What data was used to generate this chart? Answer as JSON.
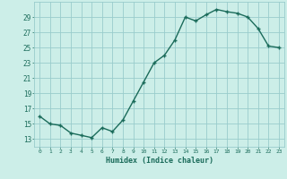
{
  "title": "",
  "xlabel": "Humidex (Indice chaleur)",
  "ylabel": "",
  "x": [
    0,
    1,
    2,
    3,
    4,
    5,
    6,
    7,
    8,
    9,
    10,
    11,
    12,
    13,
    14,
    15,
    16,
    17,
    18,
    19,
    20,
    21,
    22,
    23
  ],
  "y": [
    16.0,
    15.0,
    14.8,
    13.8,
    13.5,
    13.2,
    14.5,
    14.0,
    15.5,
    18.0,
    20.5,
    23.0,
    24.0,
    26.0,
    29.0,
    28.5,
    29.3,
    30.0,
    29.7,
    29.5,
    29.0,
    27.5,
    25.2,
    25.0
  ],
  "line_color": "#1a6b5a",
  "marker": "+",
  "marker_color": "#1a6b5a",
  "bg_color": "#cceee8",
  "grid_color": "#99cccc",
  "tick_label_color": "#1a6b5a",
  "xlabel_color": "#1a6b5a",
  "ylim": [
    12,
    31
  ],
  "yticks": [
    13,
    15,
    17,
    19,
    21,
    23,
    25,
    27,
    29
  ],
  "xticks": [
    0,
    1,
    2,
    3,
    4,
    5,
    6,
    7,
    8,
    9,
    10,
    11,
    12,
    13,
    14,
    15,
    16,
    17,
    18,
    19,
    20,
    21,
    22,
    23
  ],
  "xtick_labels": [
    "0",
    "1",
    "2",
    "3",
    "4",
    "5",
    "6",
    "7",
    "8",
    "9",
    "10",
    "11",
    "12",
    "13",
    "14",
    "15",
    "16",
    "17",
    "18",
    "19",
    "20",
    "21",
    "22",
    "23"
  ],
  "linewidth": 1.0,
  "markersize": 3
}
